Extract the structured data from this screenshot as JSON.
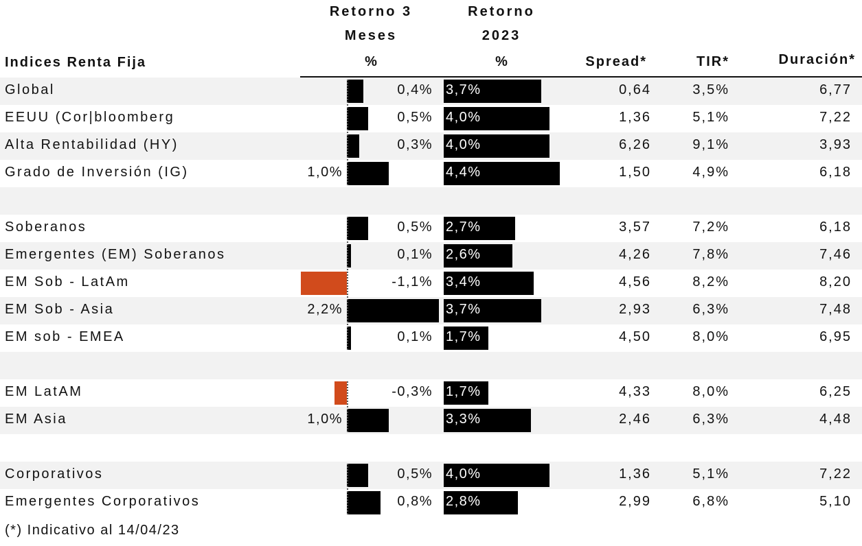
{
  "header": {
    "name": "Indices Renta Fija",
    "ret3_line1": "Retorno 3",
    "ret3_line2": "Meses",
    "ret3_unit": "%",
    "ret23_line1": "Retorno",
    "ret23_line2": "2023",
    "ret23_unit": "%",
    "spread": "Spread*",
    "tir": "TIR*",
    "duracion": "Duración*"
  },
  "footnote": "(*) Indicativo al 14/04/23",
  "colors": {
    "positive_bar": "#000000",
    "negative_bar": "#d14b1c",
    "row_shade": "#f2f2f2"
  },
  "chart_data": {
    "type": "table",
    "columns": [
      "Indices Renta Fija",
      "Retorno 3 Meses %",
      "Retorno 2023 %",
      "Spread*",
      "TIR*",
      "Duración*"
    ],
    "rows": [
      {
        "name": "Global",
        "ret3": 0.4,
        "ret3_label": "0,4%",
        "ret23": 3.7,
        "ret23_label": "3,7%",
        "spread": "0,64",
        "tir": "3,5%",
        "dur": "6,77"
      },
      {
        "name": "EEUU (Cor|bloomberg",
        "ret3": 0.5,
        "ret3_label": "0,5%",
        "ret23": 4.0,
        "ret23_label": "4,0%",
        "spread": "1,36",
        "tir": "5,1%",
        "dur": "7,22"
      },
      {
        "name": "Alta Rentabilidad (HY)",
        "ret3": 0.3,
        "ret3_label": "0,3%",
        "ret23": 4.0,
        "ret23_label": "4,0%",
        "spread": "6,26",
        "tir": "9,1%",
        "dur": "3,93"
      },
      {
        "name": "Grado de Inversión (IG)",
        "ret3": 1.0,
        "ret3_label": "1,0%",
        "ret23": 4.4,
        "ret23_label": "4,4%",
        "spread": "1,50",
        "tir": "4,9%",
        "dur": "6,18"
      },
      {
        "spacer": true
      },
      {
        "name": "Soberanos",
        "ret3": 0.5,
        "ret3_label": "0,5%",
        "ret23": 2.7,
        "ret23_label": "2,7%",
        "spread": "3,57",
        "tir": "7,2%",
        "dur": "6,18"
      },
      {
        "name": "Emergentes (EM) Soberanos",
        "ret3": 0.1,
        "ret3_label": "0,1%",
        "ret23": 2.6,
        "ret23_label": "2,6%",
        "spread": "4,26",
        "tir": "7,8%",
        "dur": "7,46"
      },
      {
        "name": "EM Sob - LatAm",
        "ret3": -1.1,
        "ret3_label": "-1,1%",
        "ret23": 3.4,
        "ret23_label": "3,4%",
        "spread": "4,56",
        "tir": "8,2%",
        "dur": "8,20"
      },
      {
        "name": "EM Sob - Asia",
        "ret3": 2.2,
        "ret3_label": "2,2%",
        "ret23": 3.7,
        "ret23_label": "3,7%",
        "spread": "2,93",
        "tir": "6,3%",
        "dur": "7,48"
      },
      {
        "name": "EM sob - EMEA",
        "ret3": 0.1,
        "ret3_label": "0,1%",
        "ret23": 1.7,
        "ret23_label": "1,7%",
        "spread": "4,50",
        "tir": "8,0%",
        "dur": "6,95"
      },
      {
        "spacer": true
      },
      {
        "name": "EM LatAM",
        "ret3": -0.3,
        "ret3_label": "-0,3%",
        "ret23": 1.7,
        "ret23_label": "1,7%",
        "spread": "4,33",
        "tir": "8,0%",
        "dur": "6,25"
      },
      {
        "name": "EM Asia",
        "ret3": 1.0,
        "ret3_label": "1,0%",
        "ret23": 3.3,
        "ret23_label": "3,3%",
        "spread": "2,46",
        "tir": "6,3%",
        "dur": "4,48"
      },
      {
        "spacer": true
      },
      {
        "name": "Corporativos",
        "ret3": 0.5,
        "ret3_label": "0,5%",
        "ret23": 4.0,
        "ret23_label": "4,0%",
        "spread": "1,36",
        "tir": "5,1%",
        "dur": "7,22"
      },
      {
        "name": "Emergentes Corporativos",
        "ret3": 0.8,
        "ret3_label": "0,8%",
        "ret23": 2.8,
        "ret23_label": "2,8%",
        "spread": "2,99",
        "tir": "6,8%",
        "dur": "5,10"
      }
    ]
  }
}
